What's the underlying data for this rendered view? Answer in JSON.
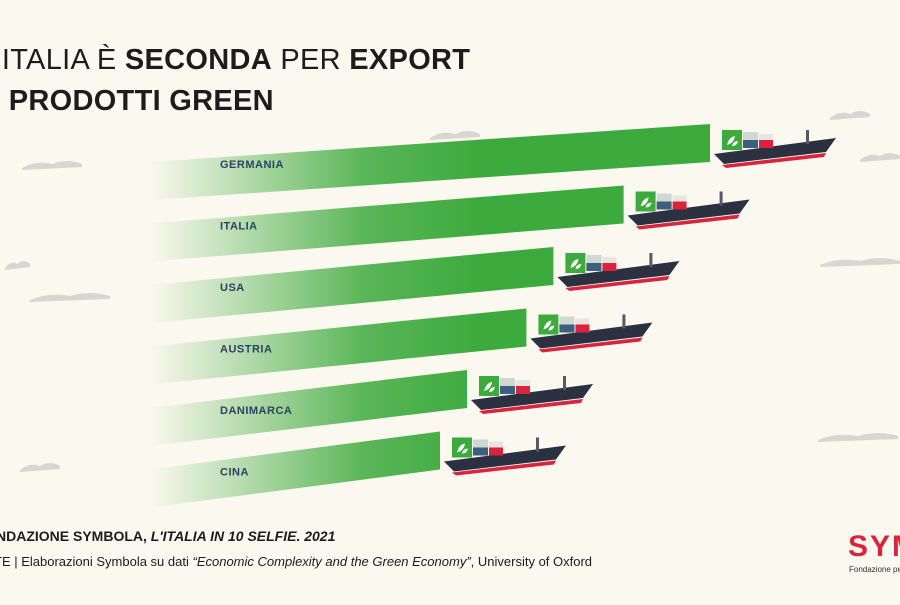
{
  "title": {
    "line1_light_a": "'ITALIA È ",
    "line1_bold_a": "SECONDA",
    "line1_light_b": " PER ",
    "line1_bold_b": "EXPORT",
    "line2_bold": "I PRODOTTI GREEN"
  },
  "footer": {
    "source_bold": "NDAZIONE SYMBOLA, ",
    "source_italic": "L'ITALIA IN 10 SELFIE. 2021",
    "note_a": "TE | Elaborazioni Symbola su dati ",
    "note_italic": "“Economic Complexity and the Green Economy”",
    "note_b": ", University of Oxford"
  },
  "logo": {
    "text": "SYMB",
    "subtitle": "Fondazione per le"
  },
  "colors": {
    "background": "#fbf8ef",
    "bar_green": "#3daa3d",
    "label_navy": "#2b4360",
    "ship_hull": "#2b3140",
    "ship_waterline": "#d9243d",
    "container_green": "#3daa3d",
    "container_blue": "#3b5f7d",
    "container_red": "#d9243d"
  },
  "chart_data": {
    "type": "bar",
    "orientation": "horizontal",
    "categories": [
      "GERMANIA",
      "ITALIA",
      "USA",
      "AUSTRIA",
      "DANIMARCA",
      "CINA"
    ],
    "values": [
      100,
      84,
      71,
      66,
      55,
      50
    ],
    "value_scale_note": "",
    "title": "",
    "xlabel": "",
    "ylabel": "",
    "xlim": [
      0,
      100
    ],
    "grid": false,
    "legend": "none"
  }
}
